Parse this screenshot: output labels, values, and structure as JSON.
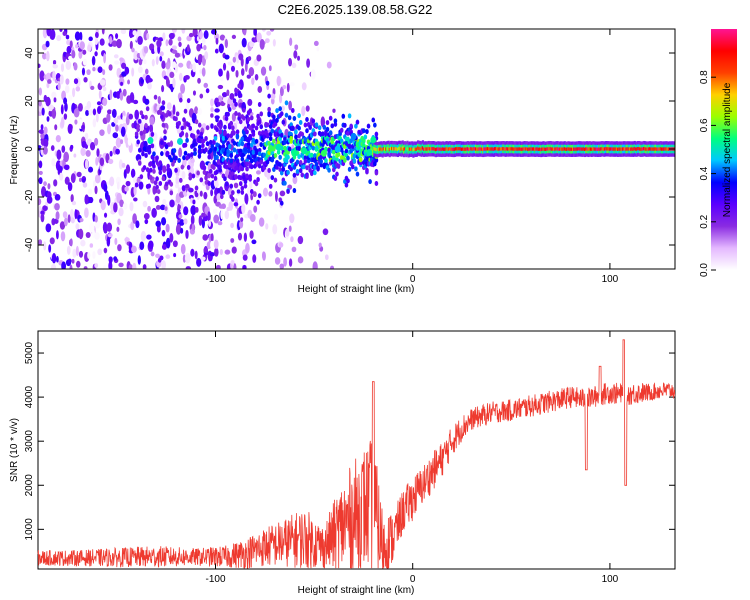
{
  "title": "C2E6.2025.139.08.58.G22",
  "chart_data": [
    {
      "type": "heatmap",
      "xlabel": "Height of straight line (km)",
      "ylabel": "Frequency (Hz)",
      "xlim": [
        -190,
        133
      ],
      "ylim": [
        -50,
        50
      ],
      "x_ticks": [
        -100,
        0,
        100
      ],
      "y_ticks": [
        -40,
        -20,
        0,
        20,
        40
      ],
      "colorbar": {
        "label": "Normalized spectral amplitude",
        "range": [
          0,
          1
        ],
        "ticks": [
          "0.0",
          "0.2",
          "0.4",
          "0.6",
          "0.8"
        ],
        "colors": [
          "#ffffff",
          "#e4b8ff",
          "#8a2be2",
          "#5a00ff",
          "#0000ff",
          "#00c8ff",
          "#00ff7f",
          "#9cff00",
          "#ffd000",
          "#ff4000",
          "#ff0000",
          "#ff1493"
        ]
      },
      "description": "Scattered low-amplitude noise for heights below about -75 km; signal concentrates near 0 Hz between -75 and -20 km; a narrow high-amplitude line at about 0 Hz from -20 km to 133 km."
    },
    {
      "type": "line",
      "xlabel": "Height of straight line (km)",
      "ylabel": "SNR (10 * v/v)",
      "xlim": [
        -190,
        133
      ],
      "ylim": [
        100,
        5500
      ],
      "x_ticks": [
        -100,
        0,
        100
      ],
      "y_ticks": [
        1000,
        2000,
        3000,
        4000,
        5000
      ],
      "color": "#ee3a2f",
      "series": [
        {
          "x": [
            -190,
            -170,
            -150,
            -130,
            -110,
            -95,
            -85,
            -75,
            -65,
            -55,
            -45,
            -35,
            -25,
            -20,
            -15,
            -10,
            -5,
            0,
            5,
            10,
            15,
            20,
            25,
            30,
            40,
            50,
            60,
            70,
            80,
            88,
            95,
            100,
            108,
            115,
            120,
            125,
            133
          ],
          "y": [
            350,
            350,
            360,
            380,
            370,
            380,
            450,
            600,
            700,
            800,
            600,
            1100,
            1500,
            1500,
            600,
            800,
            1400,
            1700,
            2000,
            2300,
            2600,
            3000,
            3300,
            3500,
            3650,
            3700,
            3800,
            3900,
            4000,
            3950,
            4050,
            4100,
            4050,
            4100,
            4100,
            4150,
            4150
          ],
          "noise": [
            180,
            180,
            220,
            250,
            200,
            250,
            350,
            450,
            550,
            700,
            500,
            1100,
            1400,
            1600,
            800,
            600,
            500,
            500,
            450,
            450,
            400,
            350,
            300,
            250,
            250,
            250,
            250,
            250,
            250,
            250,
            250,
            250,
            250,
            250,
            200,
            200,
            200
          ]
        }
      ],
      "spikes": [
        {
          "x": -20,
          "y": 4350
        },
        {
          "x": 88,
          "y": 2350
        },
        {
          "x": 95,
          "y": 4700
        },
        {
          "x": 107,
          "y": 5300
        },
        {
          "x": 108,
          "y": 2000
        }
      ]
    }
  ]
}
